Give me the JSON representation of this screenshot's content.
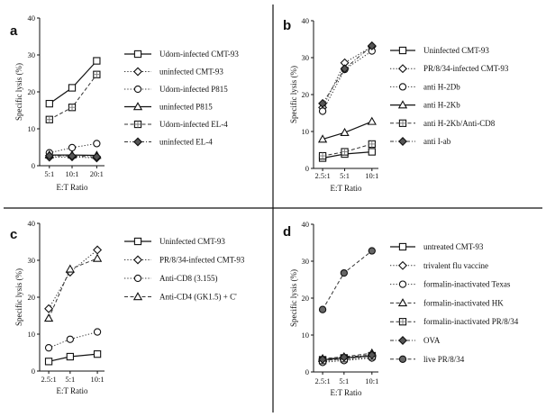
{
  "figure": {
    "y_label": "Specific lysis (%)",
    "x_label": "E:T Ratio",
    "y_ticks": [
      "0",
      "10",
      "20",
      "30",
      "40"
    ]
  },
  "chart_data": [
    {
      "panel": "a",
      "type": "line",
      "xlabel": "E:T Ratio",
      "ylabel": "Specific lysis (%)",
      "ylim": [
        0,
        40
      ],
      "categories": [
        "5:1",
        "10:1",
        "20:1"
      ],
      "series": [
        {
          "name": "Udorn-infected CMT-93",
          "marker": "square-open",
          "line": "solid",
          "values": [
            16.8,
            21.1,
            28.4
          ]
        },
        {
          "name": "uninfected CMT-93",
          "marker": "diamond-open",
          "line": "dotted",
          "values": [
            2.3,
            2.4,
            2.1
          ]
        },
        {
          "name": "Udorn-infected P815",
          "marker": "circle-open",
          "line": "dotted",
          "values": [
            3.5,
            4.9,
            6.0
          ]
        },
        {
          "name": "uninfected P815",
          "marker": "triangle-open",
          "line": "solid",
          "values": [
            2.9,
            2.9,
            2.8
          ]
        },
        {
          "name": "Udorn-infected EL-4",
          "marker": "square-crossed",
          "line": "dashed",
          "values": [
            12.5,
            15.8,
            24.7
          ]
        },
        {
          "name": "uninfected EL-4",
          "marker": "diamond-filled",
          "line": "dashdot",
          "values": [
            2.7,
            2.6,
            2.4
          ]
        }
      ]
    },
    {
      "panel": "b",
      "type": "line",
      "xlabel": "E:T Ratio",
      "ylabel": "Specific lysis (%)",
      "ylim": [
        0,
        40
      ],
      "categories": [
        "2.5:1",
        "5:1",
        "10:1"
      ],
      "series": [
        {
          "name": "Uninfected CMT-93",
          "marker": "square-open",
          "line": "solid",
          "values": [
            2.8,
            3.9,
            4.5
          ]
        },
        {
          "name": "PR/8/34-infected CMT-93",
          "marker": "diamond-open",
          "line": "dotted",
          "values": [
            16.5,
            28.6,
            33.0
          ]
        },
        {
          "name": "anti H-2Db",
          "marker": "circle-open",
          "line": "dotted",
          "values": [
            15.5,
            26.8,
            31.8
          ]
        },
        {
          "name": "anti H-2Kb",
          "marker": "triangle-open",
          "line": "solid",
          "values": [
            7.9,
            9.7,
            12.7
          ]
        },
        {
          "name": "anti H-2Kb/Anti-CD8",
          "marker": "square-crossed",
          "line": "dashed",
          "values": [
            3.4,
            4.5,
            6.6
          ]
        },
        {
          "name": "anti I-ab",
          "marker": "diamond-filled",
          "line": "dashdot",
          "values": [
            17.6,
            27.0,
            33.2
          ]
        }
      ]
    },
    {
      "panel": "c",
      "type": "line",
      "xlabel": "E:T Ratio",
      "ylabel": "Specific lysis (%)",
      "ylim": [
        0,
        40
      ],
      "categories": [
        "2.5:1",
        "5:1",
        "10:1"
      ],
      "series": [
        {
          "name": "Uninfected CMT-93",
          "marker": "square-open",
          "line": "solid",
          "values": [
            2.6,
            3.9,
            4.6
          ]
        },
        {
          "name": "PR/8/34-infected CMT-93",
          "marker": "diamond-open",
          "line": "dotted",
          "values": [
            16.9,
            26.8,
            32.8
          ]
        },
        {
          "name": "Anti-CD8 (3.155)",
          "marker": "circle-open",
          "line": "dotted",
          "values": [
            6.3,
            8.6,
            10.6
          ]
        },
        {
          "name": "Anti-CD4 (GK1.5) + C'",
          "marker": "triangle-open",
          "line": "dashed",
          "values": [
            14.3,
            27.6,
            30.5
          ]
        }
      ]
    },
    {
      "panel": "d",
      "type": "line",
      "xlabel": "E:T Ratio",
      "ylabel": "Specific lysis (%)",
      "ylim": [
        0,
        40
      ],
      "categories": [
        "2.5:1",
        "5:1",
        "10:1"
      ],
      "series": [
        {
          "name": "untreated CMT-93",
          "marker": "square-open",
          "line": "solid",
          "values": [
            3.3,
            3.8,
            4.4
          ]
        },
        {
          "name": "trivalent flu vaccine",
          "marker": "diamond-open",
          "line": "dotted",
          "values": [
            3.0,
            3.4,
            3.9
          ]
        },
        {
          "name": "formalin-inactivated Texas",
          "marker": "circle-open",
          "line": "dotted",
          "values": [
            2.6,
            3.1,
            3.8
          ]
        },
        {
          "name": "formalin-inactivated HK",
          "marker": "triangle-open",
          "line": "dashed",
          "values": [
            3.6,
            4.1,
            5.1
          ]
        },
        {
          "name": "formalin-inactivated PR/8/34",
          "marker": "square-crossed",
          "line": "dashed",
          "values": [
            3.1,
            3.6,
            4.3
          ]
        },
        {
          "name": "OVA",
          "marker": "diamond-filled",
          "line": "dashdot",
          "values": [
            3.4,
            4.0,
            4.6
          ]
        },
        {
          "name": "live PR/8/34",
          "marker": "circle-filled",
          "line": "dashed",
          "values": [
            16.9,
            26.8,
            32.8
          ]
        }
      ]
    }
  ]
}
